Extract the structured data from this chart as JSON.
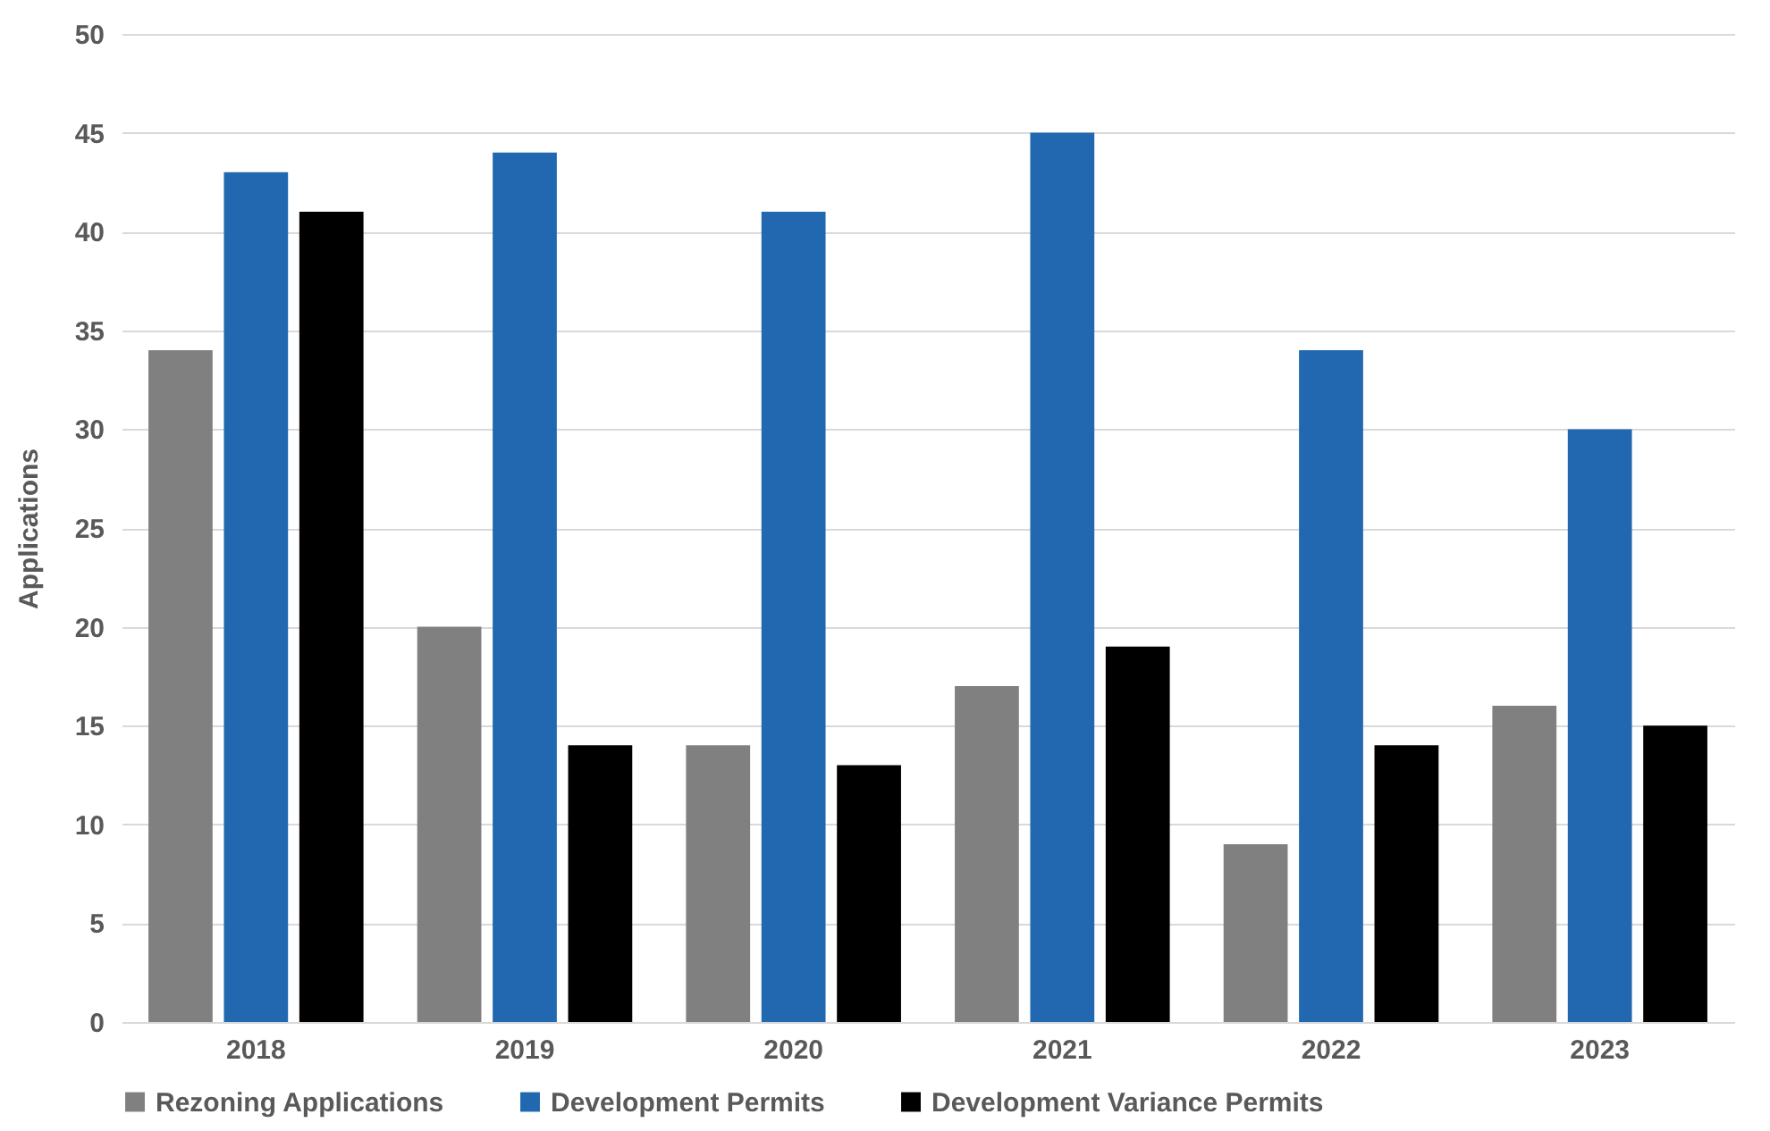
{
  "chart_data": {
    "type": "bar",
    "ylabel": "Applications",
    "categories": [
      "2018",
      "2019",
      "2020",
      "2021",
      "2022",
      "2023"
    ],
    "series": [
      {
        "name": "Rezoning Applications",
        "color": "#808080",
        "values": [
          34,
          20,
          14,
          17,
          9,
          16
        ]
      },
      {
        "name": "Development Permits",
        "color": "#2268b0",
        "values": [
          43,
          44,
          41,
          45,
          34,
          30
        ]
      },
      {
        "name": "Development Variance Permits",
        "color": "#000000",
        "values": [
          41,
          14,
          13,
          19,
          14,
          15
        ]
      }
    ],
    "ylim": [
      0,
      50
    ],
    "yticks": [
      0,
      5,
      10,
      15,
      20,
      25,
      30,
      35,
      40,
      45,
      50
    ],
    "grid": "y",
    "legend": "bottom"
  }
}
